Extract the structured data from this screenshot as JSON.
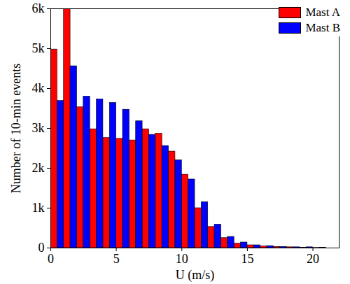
{
  "chart_data": {
    "type": "histogram",
    "xlabel": "U (m/s)",
    "ylabel": "Number of 10-min events",
    "bins": [
      0,
      1,
      2,
      3,
      4,
      5,
      6,
      7,
      8,
      9,
      10,
      11,
      12,
      13,
      14,
      15,
      16,
      17,
      18,
      19,
      20,
      21,
      22
    ],
    "series": [
      {
        "name": "Mast A",
        "color": "#ff0000",
        "values": [
          4980,
          5990,
          3530,
          2980,
          2760,
          2740,
          2700,
          2980,
          2870,
          2420,
          1840,
          1000,
          530,
          250,
          110,
          70,
          40,
          30,
          20,
          10,
          5,
          0
        ]
      },
      {
        "name": "Mast B",
        "color": "#0000ff",
        "values": [
          3690,
          4560,
          3800,
          3730,
          3640,
          3470,
          3180,
          2840,
          2560,
          2200,
          1720,
          1150,
          590,
          280,
          140,
          70,
          50,
          30,
          20,
          20,
          10,
          0
        ]
      }
    ],
    "xlim": [
      0,
      22
    ],
    "xticks": [
      0,
      5,
      10,
      15,
      20
    ],
    "ylim": [
      0,
      6000
    ],
    "yticks": [
      0,
      {
        "value": 1000,
        "label": "1k"
      },
      {
        "value": 2000,
        "label": "2k"
      },
      {
        "value": 3000,
        "label": "3k"
      },
      {
        "value": 4000,
        "label": "4k"
      },
      {
        "value": 5000,
        "label": "5k"
      },
      {
        "value": 6000,
        "label": "6k"
      }
    ],
    "legend": "top-right"
  }
}
